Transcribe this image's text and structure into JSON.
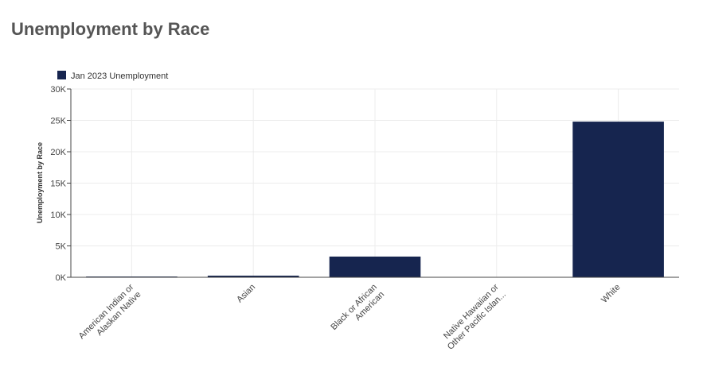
{
  "page": {
    "title": "Unemployment by Race"
  },
  "colors": {
    "bar": "#16254f",
    "grid": "#ececec",
    "axis": "#444444"
  },
  "chart_data": {
    "type": "bar",
    "title": "Unemployment by Race",
    "xlabel": "",
    "ylabel": "Unemployment by Race",
    "ylim": [
      0,
      30000
    ],
    "yticks": [
      0,
      5000,
      10000,
      15000,
      20000,
      25000,
      30000
    ],
    "ytick_labels": [
      "0K",
      "5K",
      "10K",
      "15K",
      "20K",
      "25K",
      "30K"
    ],
    "categories": [
      [
        "American Indian or",
        "Alaskan Native"
      ],
      [
        "Asian"
      ],
      [
        "Black or African",
        "American"
      ],
      [
        "Native Hawaiian or",
        "Other Pacific Islan..."
      ],
      [
        "White"
      ]
    ],
    "series": [
      {
        "name": "Jan 2023 Unemployment",
        "values": [
          120,
          260,
          3300,
          0,
          24800
        ]
      }
    ],
    "legend_position": "top-left",
    "grid": true
  }
}
